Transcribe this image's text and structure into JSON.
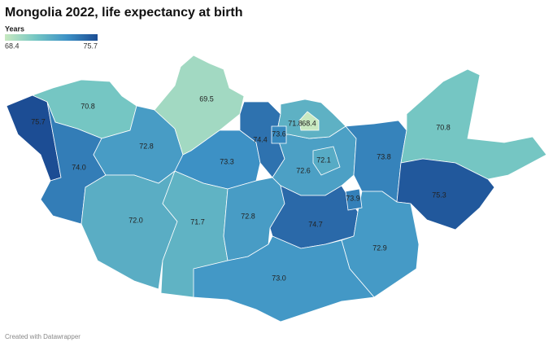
{
  "chart_data": {
    "type": "choropleth",
    "title": "Mongolia 2022, life expectancy at birth",
    "legend": {
      "title": "Years",
      "min": 68.4,
      "max": 75.7
    },
    "color_stops": [
      "#c8e9c1",
      "#74c6c3",
      "#3d92c6",
      "#1c4d94"
    ],
    "values": [
      75.7,
      70.8,
      69.5,
      74.4,
      73.6,
      71.8,
      68.4,
      70.8,
      72.8,
      73.3,
      72.6,
      72.1,
      73.8,
      74.0,
      75.3,
      73.9,
      72.0,
      71.7,
      72.8,
      74.7,
      72.9,
      73.0
    ],
    "value_labels": [
      "75.7",
      "70.8",
      "69.5",
      "74.4",
      "73.6",
      "71.8",
      "68.4",
      "70.8",
      "72.8",
      "73.3",
      "72.6",
      "72.1",
      "73.8",
      "74.0",
      "75.3",
      "73.9",
      "72.0",
      "71.7",
      "72.8",
      "74.7",
      "72.9",
      "73.0"
    ],
    "footer": "Created with Datawrapper"
  }
}
